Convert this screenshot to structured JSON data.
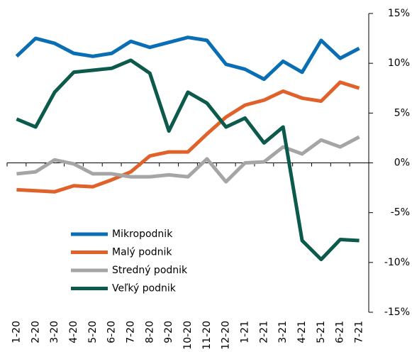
{
  "chart_data": {
    "type": "line",
    "categories": [
      "1-20",
      "2-20",
      "3-20",
      "4-20",
      "5-20",
      "6-20",
      "7-20",
      "8-20",
      "9-20",
      "10-20",
      "11-20",
      "12-20",
      "1-21",
      "2-21",
      "3-21",
      "4-21",
      "5-21",
      "6-21",
      "7-21"
    ],
    "series": [
      {
        "name": "Mikropodnik",
        "color": "#0a6eb4",
        "values": [
          10.7,
          12.5,
          12.0,
          11.0,
          10.7,
          11.0,
          12.2,
          11.6,
          12.1,
          12.6,
          12.3,
          9.9,
          9.4,
          8.4,
          10.2,
          9.1,
          12.3,
          10.5,
          11.5
        ]
      },
      {
        "name": "Malý podnik",
        "color": "#e0622a",
        "values": [
          -2.7,
          -2.8,
          -2.9,
          -2.3,
          -2.4,
          -1.7,
          -0.9,
          0.7,
          1.1,
          1.1,
          2.9,
          4.6,
          5.8,
          6.3,
          7.2,
          6.5,
          6.2,
          8.1,
          7.5
        ]
      },
      {
        "name": "Stredný podnik",
        "color": "#a5a5a5",
        "values": [
          -1.1,
          -0.9,
          0.3,
          -0.1,
          -1.1,
          -1.1,
          -1.4,
          -1.4,
          -1.2,
          -1.4,
          0.4,
          -1.9,
          0,
          0.1,
          1.6,
          0.9,
          2.3,
          1.6,
          2.6
        ]
      },
      {
        "name": "Veľký podnik",
        "color": "#0b5a4b",
        "values": [
          4.4,
          3.6,
          7.1,
          9.1,
          9.3,
          9.5,
          10.3,
          9.0,
          3.2,
          7.1,
          6.0,
          3.6,
          4.5,
          2.0,
          3.6,
          -7.8,
          -9.7,
          -7.7,
          -7.8
        ]
      }
    ],
    "ylim": [
      -15,
      15
    ],
    "yticks": [
      {
        "value": 15,
        "label": "15%"
      },
      {
        "value": 10,
        "label": "10%"
      },
      {
        "value": 5,
        "label": "5%"
      },
      {
        "value": 0,
        "label": "0%"
      },
      {
        "value": -5,
        "label": "-5%"
      },
      {
        "value": -10,
        "label": "-10%"
      },
      {
        "value": -15,
        "label": "-15%"
      }
    ],
    "legend": "left"
  }
}
